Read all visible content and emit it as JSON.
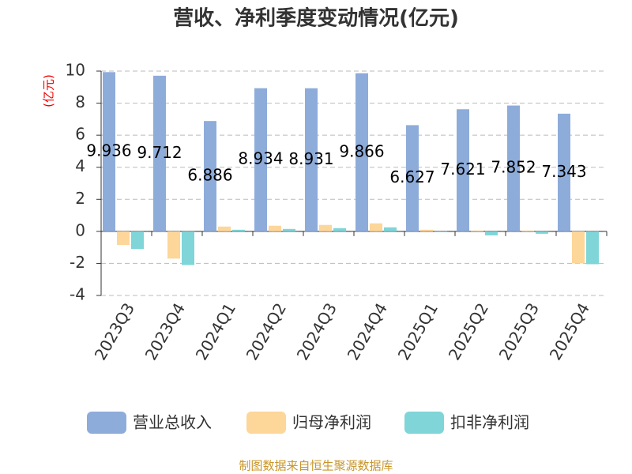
{
  "chart_data": {
    "type": "bar",
    "title": "营收、净利季度变动情况(亿元)",
    "y_axis_label": "(亿元)",
    "categories": [
      "2023Q3",
      "2023Q4",
      "2024Q1",
      "2024Q2",
      "2024Q3",
      "2024Q4",
      "2025Q1",
      "2025Q2",
      "2025Q3",
      "2025Q4"
    ],
    "series": [
      {
        "name": "营业总收入",
        "color": "#8eacda",
        "show_labels": true,
        "values": [
          9.936,
          9.712,
          6.886,
          8.934,
          8.931,
          9.866,
          6.627,
          7.621,
          7.852,
          7.343
        ]
      },
      {
        "name": "归母净利润",
        "color": "#fdd69a",
        "show_labels": false,
        "values": [
          -0.85,
          -1.7,
          0.3,
          0.35,
          0.4,
          0.5,
          0.1,
          0.05,
          0.05,
          -2.0
        ]
      },
      {
        "name": "扣非净利润",
        "color": "#7fd5d7",
        "show_labels": false,
        "values": [
          -1.1,
          -2.1,
          0.1,
          0.15,
          0.2,
          0.25,
          -0.05,
          -0.25,
          -0.15,
          -2.05
        ]
      }
    ],
    "ylim": [
      -4,
      10
    ],
    "yticks": [
      -4,
      -2,
      0,
      2,
      4,
      6,
      8,
      10
    ],
    "grid": true,
    "legend": "bottom",
    "source": "制图数据来自恒生聚源数据库"
  }
}
